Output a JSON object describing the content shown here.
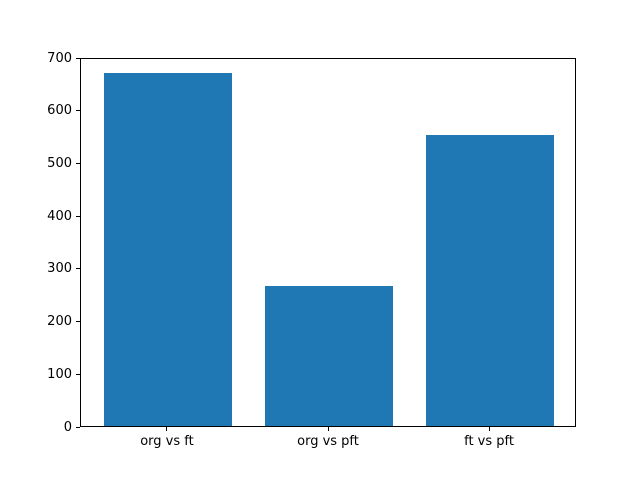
{
  "chart_data": {
    "type": "bar",
    "categories": [
      "org vs ft",
      "org vs pft",
      "ft vs pft"
    ],
    "values": [
      670,
      265,
      552
    ],
    "title": "",
    "xlabel": "",
    "ylabel": "",
    "ylim": [
      0,
      700
    ],
    "yticks": [
      0,
      100,
      200,
      300,
      400,
      500,
      600,
      700
    ],
    "bar_color": "#1f77b4",
    "bar_width": 0.8,
    "grid": false,
    "legend": null,
    "background_color": "#ffffff",
    "spine_color": "#000000"
  }
}
